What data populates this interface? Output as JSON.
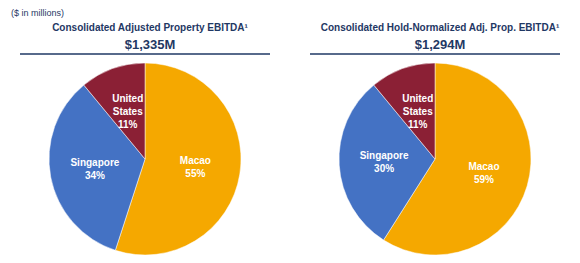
{
  "chart_data": [
    {
      "type": "pie",
      "title": "Consolidated Adjusted Property EBITDA¹",
      "subtitle": "$1,335M",
      "annotations": [
        "($ in millions)"
      ],
      "categories": [
        "Macao",
        "Singapore",
        "United\nStates"
      ],
      "values": [
        55,
        34,
        11
      ],
      "value_labels": [
        "55%",
        "34%",
        "11%"
      ],
      "colors": [
        "#f5a800",
        "#4472c4",
        "#8b2035"
      ],
      "data_labels": true
    },
    {
      "type": "pie",
      "title": "Consolidated Hold-Normalized Adj. Prop. EBITDA¹",
      "subtitle": "$1,294M",
      "categories": [
        "Macao",
        "Singapore",
        "United\nStates"
      ],
      "values": [
        59,
        30,
        11
      ],
      "value_labels": [
        "59%",
        "30%",
        "11%"
      ],
      "colors": [
        "#f5a800",
        "#4472c4",
        "#8b2035"
      ],
      "data_labels": true
    }
  ]
}
